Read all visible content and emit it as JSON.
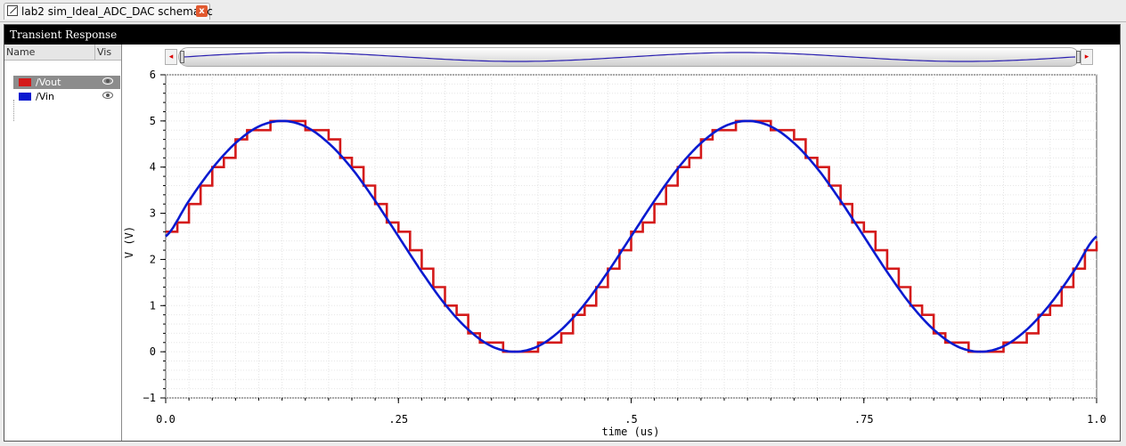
{
  "tab": {
    "title": "lab2 sim_Ideal_ADC_DAC schematic",
    "close": "x"
  },
  "window": {
    "title": "Transient Response"
  },
  "legend": {
    "col_name": "Name",
    "col_vis": "Vis",
    "items": [
      {
        "label": "/Vout",
        "color": "#d41a1a",
        "selected": true,
        "icon": "eye-icon"
      },
      {
        "label": "/Vin",
        "color": "#0a1ad0",
        "selected": false,
        "icon": "eye-icon"
      }
    ]
  },
  "scroller": {
    "left_arrow": "◂",
    "right_arrow": "▸"
  },
  "chart_data": {
    "type": "line",
    "xlabel": "time (us)",
    "ylabel": "V (V)",
    "xlim": [
      0.0,
      1.0
    ],
    "ylim": [
      -1,
      6
    ],
    "x_ticks": [
      {
        "value": 0.0,
        "label": "0.0"
      },
      {
        "value": 0.25,
        "label": ".25"
      },
      {
        "value": 0.5,
        "label": ".5"
      },
      {
        "value": 0.75,
        "label": ".75"
      },
      {
        "value": 1.0,
        "label": "1.0"
      }
    ],
    "y_ticks": [
      -1,
      0,
      1,
      2,
      3,
      4,
      5,
      6
    ],
    "grid": true,
    "series": [
      {
        "name": "/Vin",
        "color": "#0a1ad0",
        "style": "smooth",
        "x": [
          0,
          0.025,
          0.05,
          0.075,
          0.1,
          0.125,
          0.15,
          0.175,
          0.2,
          0.225,
          0.25,
          0.275,
          0.3,
          0.325,
          0.35,
          0.375,
          0.4,
          0.425,
          0.45,
          0.475,
          0.5,
          0.525,
          0.55,
          0.575,
          0.6,
          0.625,
          0.65,
          0.675,
          0.7,
          0.725,
          0.75,
          0.775,
          0.8,
          0.825,
          0.85,
          0.875,
          0.9,
          0.925,
          0.95,
          0.975,
          1.0
        ],
        "y": [
          2.5,
          3.27,
          3.97,
          4.52,
          4.88,
          5.0,
          4.88,
          4.52,
          3.97,
          3.27,
          2.5,
          1.73,
          1.03,
          0.48,
          0.12,
          0.0,
          0.12,
          0.48,
          1.03,
          1.73,
          2.5,
          3.27,
          3.97,
          4.52,
          4.88,
          5.0,
          4.88,
          4.52,
          3.97,
          3.27,
          2.5,
          1.73,
          1.03,
          0.48,
          0.12,
          0.0,
          0.12,
          0.48,
          1.03,
          1.73,
          2.5
        ]
      },
      {
        "name": "/Vout",
        "color": "#d41a1a",
        "style": "step",
        "step_period": 0.0125,
        "quantization_step": 0.2,
        "y_min": 0,
        "y_max": 5,
        "shape": "quantized copy of /Vin"
      }
    ]
  }
}
